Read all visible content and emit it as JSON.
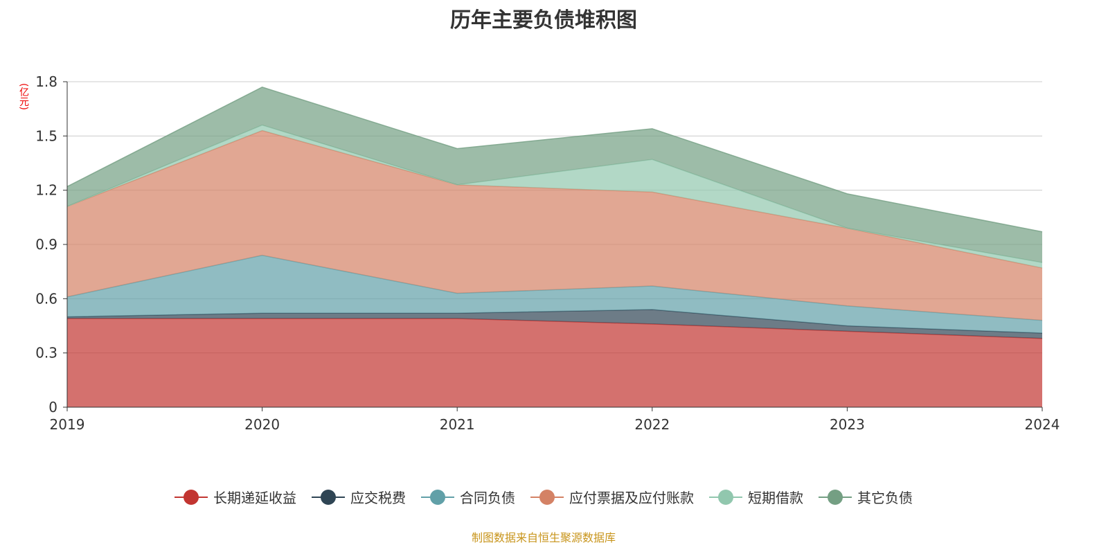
{
  "title": "历年主要负债堆积图",
  "unit": "(亿元)",
  "source": "制图数据来自恒生聚源数据库",
  "chart_data": {
    "type": "area",
    "stacked": true,
    "title": "历年主要负债堆积图",
    "ylabel": "(亿元)",
    "ylim": [
      0,
      1.8
    ],
    "yticks": [
      "0",
      "0.3",
      "0.6",
      "0.9",
      "1.2",
      "1.5",
      "1.8"
    ],
    "categories": [
      "2019",
      "2020",
      "2021",
      "2022",
      "2023",
      "2024"
    ],
    "series": [
      {
        "name": "长期递延收益",
        "color": "#c23531",
        "values": [
          0.49,
          0.49,
          0.49,
          0.46,
          0.42,
          0.38
        ]
      },
      {
        "name": "应交税费",
        "color": "#2f4554",
        "values": [
          0.01,
          0.03,
          0.03,
          0.08,
          0.03,
          0.03
        ]
      },
      {
        "name": "合同负债",
        "color": "#61a0a8",
        "values": [
          0.11,
          0.32,
          0.11,
          0.13,
          0.11,
          0.07
        ]
      },
      {
        "name": "应付票据及应付账款",
        "color": "#d48265",
        "values": [
          0.5,
          0.69,
          0.6,
          0.52,
          0.43,
          0.29
        ]
      },
      {
        "name": "短期借款",
        "color": "#91c7ae",
        "values": [
          0.0,
          0.03,
          0.0,
          0.18,
          0.0,
          0.03
        ]
      },
      {
        "name": "其它负债",
        "color": "#749f83",
        "values": [
          0.11,
          0.21,
          0.2,
          0.17,
          0.19,
          0.17
        ]
      }
    ],
    "legend": "bottom"
  }
}
